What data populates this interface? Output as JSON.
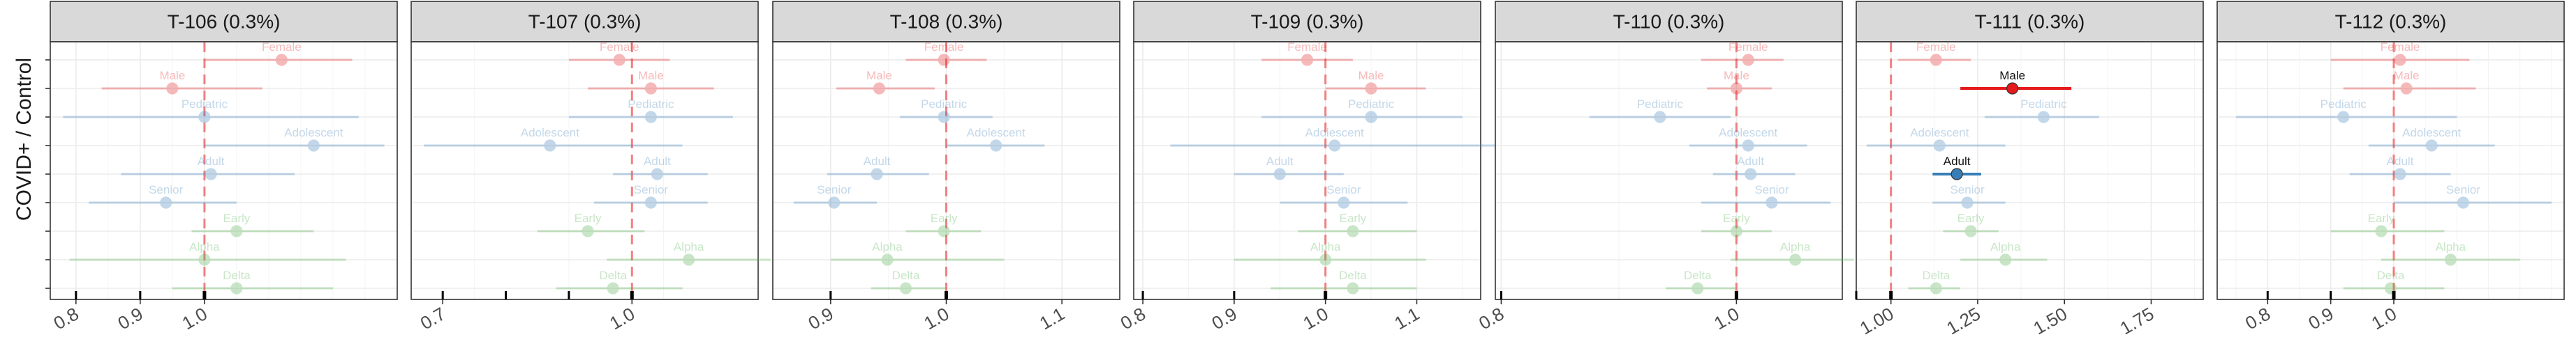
{
  "chart_data": {
    "type": "forest",
    "ylabel": "COVID+ / Control",
    "reference_x": 1.0,
    "categories": [
      "Female",
      "Male",
      "Pediatric",
      "Adolescent",
      "Adult",
      "Senior",
      "Early",
      "Alpha",
      "Delta"
    ],
    "category_groups": {
      "Female": "sex",
      "Male": "sex",
      "Pediatric": "age",
      "Adolescent": "age",
      "Adult": "age",
      "Senior": "age",
      "Early": "variant",
      "Alpha": "variant",
      "Delta": "variant"
    },
    "colors": {
      "sex": "#e41a1c",
      "age": "#377eb8",
      "variant": "#4daf4a",
      "ref": "#f08080"
    },
    "faded_opacity": 0.3,
    "panels": [
      {
        "title": "T-106 (0.3%)",
        "xlim": [
          0.76,
          1.3
        ],
        "xticks": [
          0.8,
          0.9,
          1.0
        ],
        "xtick_labels": [
          "0.8",
          "0.9",
          "1.0"
        ],
        "rug": [
          0.8,
          0.9,
          1.0
        ],
        "points": [
          {
            "label": "Female",
            "estimate": 1.12,
            "lower": 1.0,
            "upper": 1.23,
            "highlight": false
          },
          {
            "label": "Male",
            "estimate": 0.95,
            "lower": 0.84,
            "upper": 1.09,
            "highlight": false
          },
          {
            "label": "Pediatric",
            "estimate": 1.0,
            "lower": 0.78,
            "upper": 1.24,
            "highlight": false
          },
          {
            "label": "Adolescent",
            "estimate": 1.17,
            "lower": 1.0,
            "upper": 1.28,
            "highlight": false
          },
          {
            "label": "Adult",
            "estimate": 1.01,
            "lower": 0.87,
            "upper": 1.14,
            "highlight": false
          },
          {
            "label": "Senior",
            "estimate": 0.94,
            "lower": 0.82,
            "upper": 1.05,
            "highlight": false
          },
          {
            "label": "Early",
            "estimate": 1.05,
            "lower": 0.98,
            "upper": 1.17,
            "highlight": false
          },
          {
            "label": "Alpha",
            "estimate": 1.0,
            "lower": 0.79,
            "upper": 1.22,
            "highlight": false
          },
          {
            "label": "Delta",
            "estimate": 1.05,
            "lower": 0.95,
            "upper": 1.2,
            "highlight": false
          }
        ]
      },
      {
        "title": "T-107 (0.3%)",
        "xlim": [
          0.65,
          1.2
        ],
        "xticks": [
          0.7,
          1.0
        ],
        "xtick_labels": [
          "0.7",
          "1.0"
        ],
        "rug": [
          0.7,
          0.8,
          0.9,
          1.0
        ],
        "points": [
          {
            "label": "Female",
            "estimate": 0.98,
            "lower": 0.9,
            "upper": 1.06,
            "highlight": false
          },
          {
            "label": "Male",
            "estimate": 1.03,
            "lower": 0.93,
            "upper": 1.13,
            "highlight": false
          },
          {
            "label": "Pediatric",
            "estimate": 1.03,
            "lower": 0.9,
            "upper": 1.16,
            "highlight": false
          },
          {
            "label": "Adolescent",
            "estimate": 0.87,
            "lower": 0.67,
            "upper": 1.08,
            "highlight": false
          },
          {
            "label": "Adult",
            "estimate": 1.04,
            "lower": 0.97,
            "upper": 1.12,
            "highlight": false
          },
          {
            "label": "Senior",
            "estimate": 1.03,
            "lower": 0.94,
            "upper": 1.12,
            "highlight": false
          },
          {
            "label": "Early",
            "estimate": 0.93,
            "lower": 0.85,
            "upper": 1.02,
            "highlight": false
          },
          {
            "label": "Alpha",
            "estimate": 1.09,
            "lower": 0.96,
            "upper": 1.22,
            "highlight": false
          },
          {
            "label": "Delta",
            "estimate": 0.97,
            "lower": 0.88,
            "upper": 1.08,
            "highlight": false
          }
        ]
      },
      {
        "title": "T-108 (0.3%)",
        "xlim": [
          0.85,
          1.15
        ],
        "xticks": [
          0.9,
          1.0,
          1.1
        ],
        "xtick_labels": [
          "0.9",
          "1.0",
          "1.1"
        ],
        "rug": [
          0.9,
          1.0
        ],
        "points": [
          {
            "label": "Female",
            "estimate": 0.998,
            "lower": 0.965,
            "upper": 1.035,
            "highlight": false
          },
          {
            "label": "Male",
            "estimate": 0.942,
            "lower": 0.905,
            "upper": 0.99,
            "highlight": false
          },
          {
            "label": "Pediatric",
            "estimate": 0.998,
            "lower": 0.96,
            "upper": 1.04,
            "highlight": false
          },
          {
            "label": "Adolescent",
            "estimate": 1.043,
            "lower": 1.0,
            "upper": 1.085,
            "highlight": false
          },
          {
            "label": "Adult",
            "estimate": 0.94,
            "lower": 0.897,
            "upper": 0.985,
            "highlight": false
          },
          {
            "label": "Senior",
            "estimate": 0.903,
            "lower": 0.868,
            "upper": 0.94,
            "highlight": false
          },
          {
            "label": "Early",
            "estimate": 0.998,
            "lower": 0.965,
            "upper": 1.03,
            "highlight": false
          },
          {
            "label": "Alpha",
            "estimate": 0.949,
            "lower": 0.9,
            "upper": 1.05,
            "highlight": false
          },
          {
            "label": "Delta",
            "estimate": 0.965,
            "lower": 0.935,
            "upper": 1.0,
            "highlight": false
          }
        ]
      },
      {
        "title": "T-109 (0.3%)",
        "xlim": [
          0.79,
          1.17
        ],
        "xticks": [
          0.8,
          0.9,
          1.0,
          1.1
        ],
        "xtick_labels": [
          "0.8",
          "0.9",
          "1.0",
          "1.1"
        ],
        "rug": [
          0.8,
          0.9,
          1.0
        ],
        "points": [
          {
            "label": "Female",
            "estimate": 0.98,
            "lower": 0.93,
            "upper": 1.03,
            "highlight": false
          },
          {
            "label": "Male",
            "estimate": 1.05,
            "lower": 1.0,
            "upper": 1.11,
            "highlight": false
          },
          {
            "label": "Pediatric",
            "estimate": 1.05,
            "lower": 0.93,
            "upper": 1.15,
            "highlight": false
          },
          {
            "label": "Adolescent",
            "estimate": 1.01,
            "lower": 0.83,
            "upper": 1.19,
            "highlight": false
          },
          {
            "label": "Adult",
            "estimate": 0.95,
            "lower": 0.9,
            "upper": 1.02,
            "highlight": false
          },
          {
            "label": "Senior",
            "estimate": 1.02,
            "lower": 0.95,
            "upper": 1.09,
            "highlight": false
          },
          {
            "label": "Early",
            "estimate": 1.03,
            "lower": 0.97,
            "upper": 1.1,
            "highlight": false
          },
          {
            "label": "Alpha",
            "estimate": 1.0,
            "lower": 0.9,
            "upper": 1.11,
            "highlight": false
          },
          {
            "label": "Delta",
            "estimate": 1.03,
            "lower": 0.94,
            "upper": 1.1,
            "highlight": false
          }
        ]
      },
      {
        "title": "T-110 (0.3%)",
        "xlim": [
          0.795,
          1.09
        ],
        "xticks": [
          0.8,
          1.0
        ],
        "xtick_labels": [
          "0.8",
          "1.0"
        ],
        "rug": [
          0.8,
          1.0
        ],
        "points": [
          {
            "label": "Female",
            "estimate": 1.01,
            "lower": 0.97,
            "upper": 1.04,
            "highlight": false
          },
          {
            "label": "Male",
            "estimate": 1.0,
            "lower": 0.975,
            "upper": 1.03,
            "highlight": false
          },
          {
            "label": "Pediatric",
            "estimate": 0.935,
            "lower": 0.875,
            "upper": 0.995,
            "highlight": false
          },
          {
            "label": "Adolescent",
            "estimate": 1.01,
            "lower": 0.96,
            "upper": 1.06,
            "highlight": false
          },
          {
            "label": "Adult",
            "estimate": 1.012,
            "lower": 0.98,
            "upper": 1.05,
            "highlight": false
          },
          {
            "label": "Senior",
            "estimate": 1.03,
            "lower": 0.97,
            "upper": 1.08,
            "highlight": false
          },
          {
            "label": "Early",
            "estimate": 1.0,
            "lower": 0.97,
            "upper": 1.03,
            "highlight": false
          },
          {
            "label": "Alpha",
            "estimate": 1.05,
            "lower": 0.995,
            "upper": 1.1,
            "highlight": false
          },
          {
            "label": "Delta",
            "estimate": 0.967,
            "lower": 0.94,
            "upper": 1.0,
            "highlight": false
          }
        ]
      },
      {
        "title": "T-111 (0.3%)",
        "xlim": [
          0.9,
          1.9
        ],
        "xticks": [
          1.0,
          1.25,
          1.5,
          1.75
        ],
        "xtick_labels": [
          "1.00",
          "1.25",
          "1.50",
          "1.75"
        ],
        "rug": [
          0.9,
          1.0
        ],
        "points": [
          {
            "label": "Female",
            "estimate": 1.13,
            "lower": 1.02,
            "upper": 1.23,
            "highlight": false
          },
          {
            "label": "Male",
            "estimate": 1.35,
            "lower": 1.2,
            "upper": 1.52,
            "highlight": true
          },
          {
            "label": "Pediatric",
            "estimate": 1.44,
            "lower": 1.27,
            "upper": 1.6,
            "highlight": false
          },
          {
            "label": "Adolescent",
            "estimate": 1.14,
            "lower": 0.93,
            "upper": 1.33,
            "highlight": false
          },
          {
            "label": "Adult",
            "estimate": 1.19,
            "lower": 1.12,
            "upper": 1.26,
            "highlight": true
          },
          {
            "label": "Senior",
            "estimate": 1.22,
            "lower": 1.12,
            "upper": 1.33,
            "highlight": false
          },
          {
            "label": "Early",
            "estimate": 1.23,
            "lower": 1.15,
            "upper": 1.31,
            "highlight": false
          },
          {
            "label": "Alpha",
            "estimate": 1.33,
            "lower": 1.2,
            "upper": 1.45,
            "highlight": false
          },
          {
            "label": "Delta",
            "estimate": 1.13,
            "lower": 1.05,
            "upper": 1.2,
            "highlight": false
          }
        ]
      },
      {
        "title": "T-112 (0.3%)",
        "xlim": [
          0.72,
          1.27
        ],
        "xticks": [
          0.8,
          0.9,
          1.0
        ],
        "xtick_labels": [
          "0.8",
          "0.9",
          "1.0"
        ],
        "rug": [
          0.8,
          0.9,
          1.0
        ],
        "points": [
          {
            "label": "Female",
            "estimate": 1.01,
            "lower": 0.9,
            "upper": 1.12,
            "highlight": false
          },
          {
            "label": "Male",
            "estimate": 1.02,
            "lower": 0.92,
            "upper": 1.13,
            "highlight": false
          },
          {
            "label": "Pediatric",
            "estimate": 0.92,
            "lower": 0.75,
            "upper": 1.1,
            "highlight": false
          },
          {
            "label": "Adolescent",
            "estimate": 1.06,
            "lower": 0.96,
            "upper": 1.16,
            "highlight": false
          },
          {
            "label": "Adult",
            "estimate": 1.01,
            "lower": 0.93,
            "upper": 1.09,
            "highlight": false
          },
          {
            "label": "Senior",
            "estimate": 1.11,
            "lower": 1.0,
            "upper": 1.25,
            "highlight": false
          },
          {
            "label": "Early",
            "estimate": 0.98,
            "lower": 0.9,
            "upper": 1.08,
            "highlight": false
          },
          {
            "label": "Alpha",
            "estimate": 1.09,
            "lower": 0.98,
            "upper": 1.2,
            "highlight": false
          },
          {
            "label": "Delta",
            "estimate": 0.995,
            "lower": 0.92,
            "upper": 1.08,
            "highlight": false
          }
        ]
      }
    ]
  }
}
